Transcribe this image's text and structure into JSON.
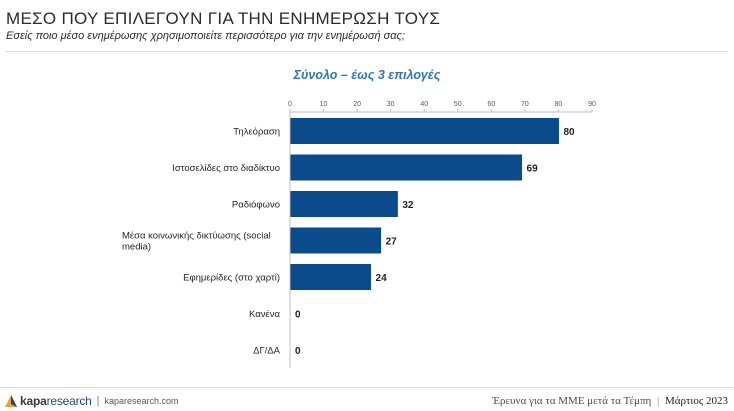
{
  "header": {
    "title": "ΜΕΣΟ ΠΟΥ ΕΠΙΛΕΓΟΥΝ ΓΙΑ ΤΗΝ ΕΝΗΜΕΡΩΣΗ ΤΟΥΣ",
    "subtitle": "Εσείς ποιο μέσο ενημέρωσης χρησιμοποιείτε περισσότερο για την ενημέρωσή σας;"
  },
  "chart_data": {
    "type": "bar",
    "orientation": "horizontal",
    "title": "Σύνολο – έως 3 επιλογές",
    "categories": [
      "Τηλεόραση",
      "Ιστοσελίδες στο διαδίκτυο",
      "Ραδιόφωνο",
      "Μέσα κοινωνικής δικτύωσης (social media)",
      "Εφημερίδες (στο χαρτί)",
      "Κανένα",
      "ΔΓ/ΔΑ"
    ],
    "values": [
      80,
      69,
      32,
      27,
      24,
      0,
      0
    ],
    "xlim": [
      0,
      90
    ],
    "xticks": [
      0,
      10,
      20,
      30,
      40,
      50,
      60,
      70,
      80,
      90
    ],
    "axis_position": "top",
    "grid": false,
    "bar_color": "#0b4a8b"
  },
  "footer": {
    "brand_bold": "kapa",
    "brand_light": "research",
    "separator": "|",
    "url": "kaparesearch.com",
    "survey": "Έρευνα για τα ΜΜΕ μετά τα Τέμπη",
    "date_separator": "|",
    "date": "Μάρτιος 2023"
  }
}
